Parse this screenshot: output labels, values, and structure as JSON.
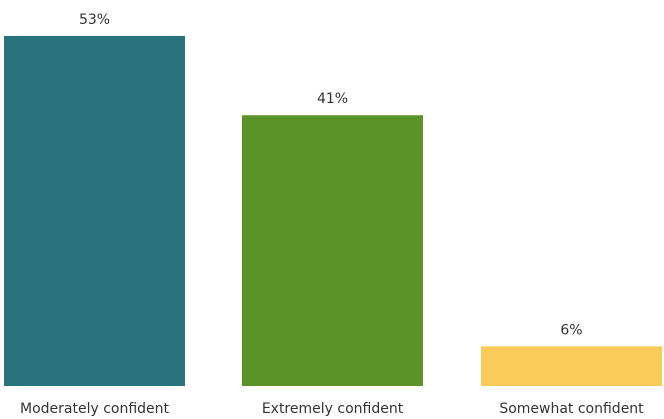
{
  "chart_data": {
    "type": "bar",
    "categories": [
      "Moderately confident",
      "Extremely confident",
      "Somewhat confident"
    ],
    "values": [
      53,
      41,
      6
    ],
    "value_labels": [
      "53%",
      "41%",
      "6%"
    ],
    "colors": [
      "#2A717E",
      "#5A9327",
      "#FACB58"
    ],
    "ylim": [
      0,
      53
    ],
    "title": "",
    "xlabel": "",
    "ylabel": "",
    "grid": false,
    "legend": "none"
  }
}
